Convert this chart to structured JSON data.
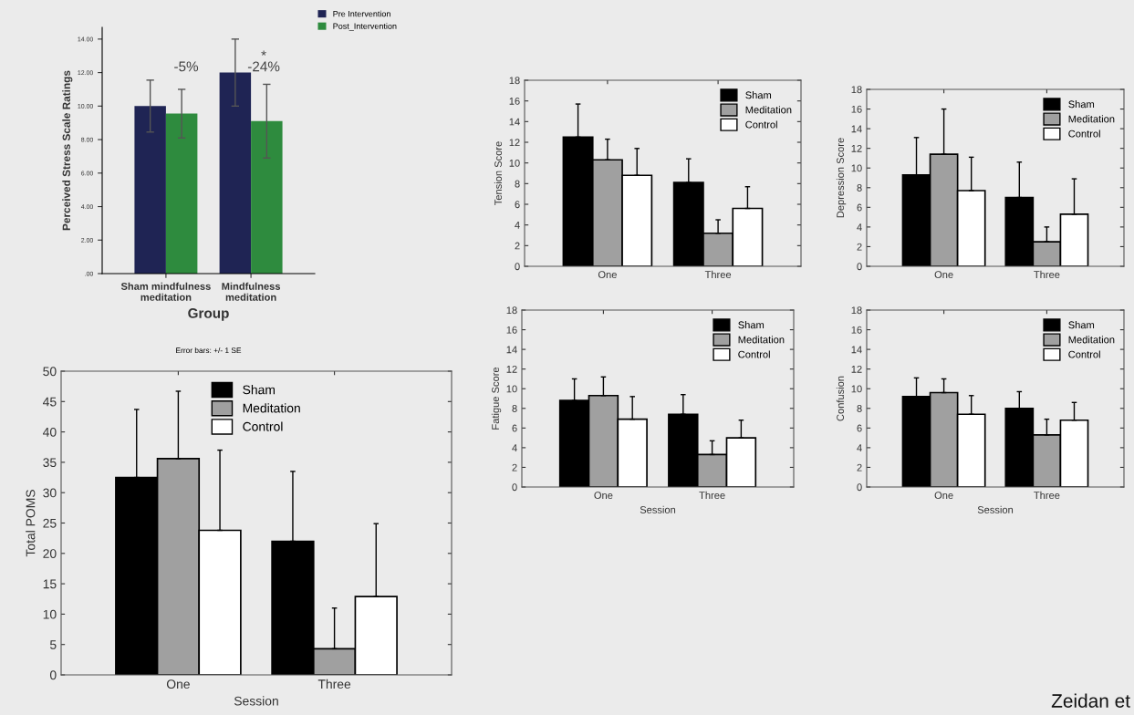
{
  "chart_data": [
    {
      "type": "bar",
      "ylabel": "Perceived Stress Scale Ratings",
      "xlabel": "Group",
      "categories": [
        "Sham mindfulness\nmeditation",
        "Mindfulness\nmeditation"
      ],
      "series": [
        {
          "name": "Pre Intervention",
          "color": "#1f2454",
          "values": [
            10.0,
            12.0
          ],
          "errors": [
            1.55,
            2.0
          ]
        },
        {
          "name": "Post_Intervention",
          "color": "#2e8b3e",
          "values": [
            9.55,
            9.1
          ],
          "errors": [
            1.45,
            2.2
          ]
        }
      ],
      "ylim": [
        0,
        14.7
      ],
      "yticks": [
        {
          "value": 0,
          "label": ".00"
        },
        {
          "value": 2,
          "label": "2.00"
        },
        {
          "value": 4,
          "label": "4.00"
        },
        {
          "value": 6,
          "label": "6.00"
        },
        {
          "value": 8,
          "label": "8.00"
        },
        {
          "value": 10,
          "label": "10.00"
        },
        {
          "value": 12,
          "label": "12.00"
        },
        {
          "value": 14,
          "label": "14.00"
        }
      ],
      "annotations": [
        "-5%",
        "*",
        "-24%",
        "Error bars: +/- 1 SE"
      ],
      "legend": "top right",
      "grid": false
    },
    {
      "type": "bar",
      "ylabel": "Tension Score",
      "categories": [
        "One",
        "Three"
      ],
      "series": [
        {
          "name": "Sham",
          "color": "#000000",
          "values": [
            12.5,
            8.1
          ],
          "errors": [
            [
              12.5,
              15.7
            ],
            [
              8.1,
              10.4
            ]
          ]
        },
        {
          "name": "Meditation",
          "color": "#a0a0a0",
          "values": [
            10.3,
            3.2
          ],
          "errors": [
            [
              10.3,
              12.3
            ],
            [
              3.2,
              4.5
            ]
          ]
        },
        {
          "name": "Control",
          "color": "#ffffff",
          "values": [
            8.8,
            5.6
          ],
          "errors": [
            [
              8.8,
              11.4
            ],
            [
              5.6,
              7.7
            ]
          ]
        }
      ],
      "ylim": [
        0,
        18
      ],
      "yticks": [
        0,
        2,
        4,
        6,
        8,
        10,
        12,
        14,
        16,
        18
      ],
      "legend": "top right",
      "grid": false
    },
    {
      "type": "bar",
      "ylabel": "Depression Score",
      "categories": [
        "One",
        "Three"
      ],
      "series": [
        {
          "name": "Sham",
          "color": "#000000",
          "values": [
            9.3,
            7.0
          ],
          "errors": [
            [
              9.3,
              13.1
            ],
            [
              7.0,
              10.6
            ]
          ]
        },
        {
          "name": "Meditation",
          "color": "#a0a0a0",
          "values": [
            11.4,
            2.5
          ],
          "errors": [
            [
              11.4,
              16.0
            ],
            [
              2.5,
              4.0
            ]
          ]
        },
        {
          "name": "Control",
          "color": "#ffffff",
          "values": [
            7.7,
            5.3
          ],
          "errors": [
            [
              7.7,
              11.1
            ],
            [
              5.3,
              8.9
            ]
          ]
        }
      ],
      "ylim": [
        0,
        18
      ],
      "yticks": [
        0,
        2,
        4,
        6,
        8,
        10,
        12,
        14,
        16,
        18
      ],
      "legend": "top right",
      "grid": false
    },
    {
      "type": "bar",
      "ylabel": "Total POMS",
      "xlabel": "Session",
      "categories": [
        "One",
        "Three"
      ],
      "series": [
        {
          "name": "Sham",
          "color": "#000000",
          "values": [
            32.5,
            22.0
          ],
          "errors": [
            [
              32.5,
              43.7
            ],
            [
              22.0,
              33.5
            ]
          ]
        },
        {
          "name": "Meditation",
          "color": "#a0a0a0",
          "values": [
            35.6,
            4.3
          ],
          "errors": [
            [
              35.6,
              46.7
            ],
            [
              4.3,
              11.0
            ]
          ]
        },
        {
          "name": "Control",
          "color": "#ffffff",
          "values": [
            23.8,
            12.9
          ],
          "errors": [
            [
              23.8,
              37.0
            ],
            [
              12.9,
              24.9
            ]
          ]
        }
      ],
      "ylim": [
        0,
        50
      ],
      "yticks": [
        0,
        5,
        10,
        15,
        20,
        25,
        30,
        35,
        40,
        45,
        50
      ],
      "legend": "top",
      "grid": false
    },
    {
      "type": "bar",
      "ylabel": "Fatigue Score",
      "xlabel": "Session",
      "categories": [
        "One",
        "Three"
      ],
      "series": [
        {
          "name": "Sham",
          "color": "#000000",
          "values": [
            8.8,
            7.4
          ],
          "errors": [
            [
              8.8,
              11.0
            ],
            [
              7.4,
              9.4
            ]
          ]
        },
        {
          "name": "Meditation",
          "color": "#a0a0a0",
          "values": [
            9.3,
            3.3
          ],
          "errors": [
            [
              9.3,
              11.2
            ],
            [
              3.3,
              4.7
            ]
          ]
        },
        {
          "name": "Control",
          "color": "#ffffff",
          "values": [
            6.9,
            5.0
          ],
          "errors": [
            [
              6.9,
              9.2
            ],
            [
              5.0,
              6.8
            ]
          ]
        }
      ],
      "ylim": [
        0,
        18
      ],
      "yticks": [
        0,
        2,
        4,
        6,
        8,
        10,
        12,
        14,
        16,
        18
      ],
      "legend": "top right",
      "grid": false
    },
    {
      "type": "bar",
      "ylabel": "Confusion",
      "xlabel": "Session",
      "categories": [
        "One",
        "Three"
      ],
      "series": [
        {
          "name": "Sham",
          "color": "#000000",
          "values": [
            9.2,
            8.0
          ],
          "errors": [
            [
              9.2,
              11.1
            ],
            [
              8.0,
              9.7
            ]
          ]
        },
        {
          "name": "Meditation",
          "color": "#a0a0a0",
          "values": [
            9.6,
            5.3
          ],
          "errors": [
            [
              9.6,
              11.0
            ],
            [
              5.3,
              6.9
            ]
          ]
        },
        {
          "name": "Control",
          "color": "#ffffff",
          "values": [
            7.4,
            6.8
          ],
          "errors": [
            [
              7.4,
              9.3
            ],
            [
              6.8,
              8.6
            ]
          ]
        }
      ],
      "ylim": [
        0,
        18
      ],
      "yticks": [
        0,
        2,
        4,
        6,
        8,
        10,
        12,
        14,
        16,
        18
      ],
      "legend": "top right",
      "grid": false,
      "annotations": [
        "Zeidan et"
      ]
    }
  ]
}
